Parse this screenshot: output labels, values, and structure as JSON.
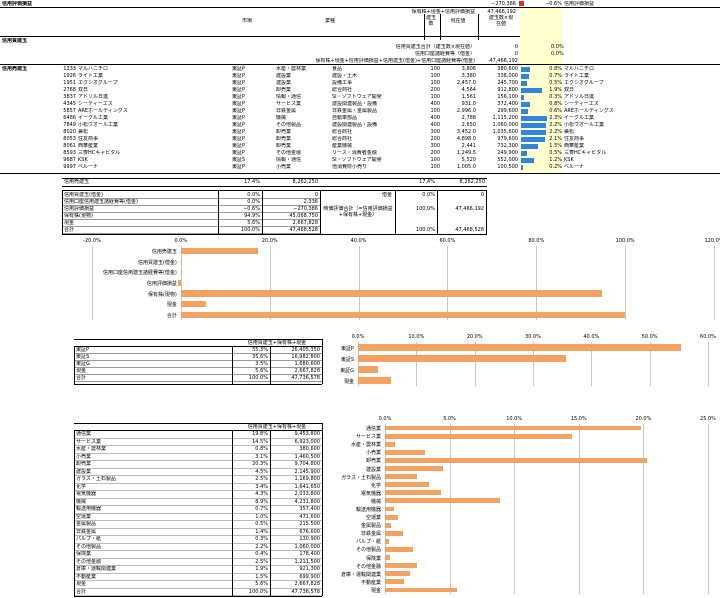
{
  "sheet": {
    "header_title": "信用評価損益",
    "top_row": {
      "label": "信用評価損益",
      "value": "−270,386",
      "pct": "−0.6%",
      "name": "信用評価損益"
    },
    "total_label": "保有株+現金+信用評価損益",
    "total_value": "47,466,192",
    "col_market": "市場",
    "col_industry": "業種",
    "col_shares": "建玉数",
    "col_price": "現在値",
    "col_shares2": "建玉数×現在値",
    "section_buy": "信用買建玉",
    "buy_total_label": "信用買建玉合計（建玉数×現在値）",
    "buy_total_value": "0",
    "buy_total_pct": "0.0%",
    "buy_fee_label": "信用口座諸経費等（借金）",
    "buy_fee_value": "0",
    "buy_fee_pct": "0.0%",
    "sum_label": "保有株+現金+信用評価損益+信用建玉(借金)+信用口座諸経費等(借金)",
    "sum_value": "47,466,192",
    "section_sell": "信用売建玉",
    "rows": [
      {
        "code": "1333",
        "name": "マルハニチロ",
        "market": "東証P",
        "industry": "水産・農林業",
        "sub": "食品",
        "shares": "100",
        "price": "3,806",
        "value": "380,600",
        "pct": "0.8%",
        "pctv": 0.8,
        "label": "マルハニチロ"
      },
      {
        "code": "1926",
        "name": "ライト工業",
        "market": "東証P",
        "industry": "建設業",
        "sub": "建設・土木",
        "shares": "100",
        "price": "3,380",
        "value": "338,000",
        "pct": "0.7%",
        "pctv": 0.7,
        "label": "ライト工業"
      },
      {
        "code": "1951",
        "name": "エクシオグループ",
        "market": "東証P",
        "industry": "建設業",
        "sub": "設備工事",
        "shares": "100",
        "price": "2,457.0",
        "value": "245,700",
        "pct": "0.5%",
        "pctv": 0.5,
        "label": "エクシオグループ"
      },
      {
        "code": "2768",
        "name": "双日",
        "market": "東証P",
        "industry": "卸売業",
        "sub": "総合商社",
        "shares": "200",
        "price": "4,564",
        "value": "912,800",
        "pct": "1.9%",
        "pctv": 1.9,
        "label": "双日"
      },
      {
        "code": "3837",
        "name": "アドソル日進",
        "market": "東証P",
        "industry": "情報・通信",
        "sub": "SI・ソフトウェア開発",
        "shares": "100",
        "price": "1,561",
        "value": "156,100",
        "pct": "0.3%",
        "pctv": 0.3,
        "label": "アドソル日進"
      },
      {
        "code": "4345",
        "name": "シーティーエス",
        "market": "東証P",
        "industry": "サービス業",
        "sub": "建設関連製品・設備",
        "shares": "400",
        "price": "931.0",
        "value": "372,400",
        "pct": "0.8%",
        "pctv": 0.8,
        "label": "シーティーエス"
      },
      {
        "code": "5857",
        "name": "AREホールディングス",
        "market": "東証P",
        "industry": "非鉄金属",
        "sub": "非鉄金属・金属製品",
        "shares": "100",
        "price": "2,996.0",
        "value": "299,600",
        "pct": "0.6%",
        "pctv": 0.6,
        "label": "AREホールディングス"
      },
      {
        "code": "6486",
        "name": "イーグル工業",
        "market": "東証P",
        "industry": "機械",
        "sub": "自動車部品",
        "shares": "400",
        "price": "2,788",
        "value": "1,115,200",
        "pct": "2.3%",
        "pctv": 2.3,
        "label": "イーグル工業"
      },
      {
        "code": "7849",
        "name": "小松ウオール工業",
        "market": "東証P",
        "industry": "その他製品",
        "sub": "建設関連製品・設備",
        "shares": "400",
        "price": "2,650",
        "value": "1,060,000",
        "pct": "2.2%",
        "pctv": 2.2,
        "label": "小松ウオール工業"
      },
      {
        "code": "8020",
        "name": "兼松",
        "market": "東証P",
        "industry": "卸売業",
        "sub": "総合商社",
        "shares": "300",
        "price": "3,452.0",
        "value": "1,035,600",
        "pct": "2.2%",
        "pctv": 2.2,
        "label": "兼松"
      },
      {
        "code": "8053",
        "name": "住友商事",
        "market": "東証P",
        "industry": "卸売業",
        "sub": "総合商社",
        "shares": "200",
        "price": "4,898.0",
        "value": "979,600",
        "pct": "2.1%",
        "pctv": 2.1,
        "label": "住友商事"
      },
      {
        "code": "8061",
        "name": "西華産業",
        "market": "東証P",
        "industry": "卸売業",
        "sub": "産業機械",
        "shares": "300",
        "price": "2,441",
        "value": "732,300",
        "pct": "1.5%",
        "pctv": 1.5,
        "label": "西華産業"
      },
      {
        "code": "8593",
        "name": "三菱HCキャピタル",
        "market": "東証P",
        "industry": "その他金融",
        "sub": "リース・消費者金融",
        "shares": "200",
        "price": "1,249.5",
        "value": "249,900",
        "pct": "0.5%",
        "pctv": 0.5,
        "label": "三菱HCキャピタル"
      },
      {
        "code": "9687",
        "name": "KSK",
        "market": "東証S",
        "industry": "情報・通信",
        "sub": "SI・ソフトウェア開発",
        "shares": "100",
        "price": "5,520",
        "value": "552,000",
        "pct": "1.2%",
        "pctv": 1.2,
        "label": "KSK"
      },
      {
        "code": "9997",
        "name": "ベルーナ",
        "market": "東証P",
        "industry": "小売業",
        "sub": "他消費財小売り",
        "shares": "100",
        "price": "1,005.0",
        "value": "100,500",
        "pct": "0.2%",
        "pctv": 0.2,
        "label": "ベルーナ"
      }
    ],
    "sell_total": {
      "label": "信用売建玉",
      "pct": "17.4%",
      "value": "8,262,250",
      "pct2": "17.4%",
      "value2": "8,262,250"
    }
  },
  "summary": {
    "rows": [
      {
        "label": "信用買建玉(借金)",
        "pct": "0.0%",
        "value": "0"
      },
      {
        "label": "信用口座信用建玉諸経費等(借金)",
        "pct": "0.0%",
        "value": "2,336"
      },
      {
        "label": "信用評価損益",
        "pct": "−0.6%",
        "value": "−270,386"
      },
      {
        "label": "保有株(現物)",
        "pct": "94.9%",
        "value": "45,068,750"
      },
      {
        "label": "現金",
        "pct": "5.6%",
        "value": "2,667,828"
      },
      {
        "label": "合計",
        "pct": "100.0%",
        "value": "47,468,528"
      }
    ],
    "right": {
      "debt_label": "借金",
      "debt_pct": "0.0%",
      "debt_value": "0",
      "total_label": "時価評価合計（=信用評価損益+保有株+現金）",
      "total_pct": "100.0%",
      "total_value": "47,466,192",
      "sum_pct": "100.0%",
      "sum_value": "47,468,528"
    }
  },
  "market": {
    "header": "信用買建玉+保有株+現金",
    "rows": [
      {
        "label": "東証P",
        "pct": "55.3%",
        "value": "26,405,350"
      },
      {
        "label": "東証S",
        "pct": "35.6%",
        "value": "16,982,800"
      },
      {
        "label": "東証G",
        "pct": "3.5%",
        "value": "1,680,600"
      },
      {
        "label": "現金",
        "pct": "5.6%",
        "value": "2,667,828"
      },
      {
        "label": "合計",
        "pct": "100.0%",
        "value": "47,736,578"
      }
    ]
  },
  "industry": {
    "header": "信用買建玉+保有株+現金",
    "rows": [
      {
        "label": "通信業",
        "pct": "19.8%",
        "value": "9,453,800"
      },
      {
        "label": "サービス業",
        "pct": "14.5%",
        "value": "6,923,000"
      },
      {
        "label": "水産・農林業",
        "pct": "0.8%",
        "value": "380,600"
      },
      {
        "label": "小売業",
        "pct": "3.1%",
        "value": "1,460,500"
      },
      {
        "label": "卸売業",
        "pct": "20.3%",
        "value": "9,704,800"
      },
      {
        "label": "建設業",
        "pct": "4.5%",
        "value": "2,145,900"
      },
      {
        "label": "ガラス・土石製品",
        "pct": "2.5%",
        "value": "1,169,800"
      },
      {
        "label": "化学",
        "pct": "3.4%",
        "value": "1,641,650"
      },
      {
        "label": "電気機器",
        "pct": "4.3%",
        "value": "2,033,800"
      },
      {
        "label": "機械",
        "pct": "8.9%",
        "value": "4,231,800"
      },
      {
        "label": "輸送用機器",
        "pct": "0.7%",
        "value": "357,400"
      },
      {
        "label": "空運業",
        "pct": "1.0%",
        "value": "471,600"
      },
      {
        "label": "金属製品",
        "pct": "0.5%",
        "value": "215,500"
      },
      {
        "label": "非鉄金属",
        "pct": "1.4%",
        "value": "676,600"
      },
      {
        "label": "パルプ・紙",
        "pct": "0.3%",
        "value": "130,900"
      },
      {
        "label": "その他製品",
        "pct": "2.2%",
        "value": "1,060,000"
      },
      {
        "label": "保険業",
        "pct": "0.4%",
        "value": "178,400"
      },
      {
        "label": "その他金融",
        "pct": "2.5%",
        "value": "1,211,500"
      },
      {
        "label": "倉庫・運輸関連業",
        "pct": "1.9%",
        "value": "921,300"
      },
      {
        "label": "不動産業",
        "pct": "1.5%",
        "value": "699,900"
      },
      {
        "label": "現金",
        "pct": "5.6%",
        "value": "2,667,828"
      },
      {
        "label": "合計",
        "pct": "100.0%",
        "value": "47,736,578"
      }
    ]
  },
  "chart_data": [
    {
      "type": "bar",
      "orientation": "horizontal",
      "categories": [
        "信用売建玉",
        "信用買建玉(借金)",
        "信用口座信用建玉諸経費等(借金)",
        "信用評価損益",
        "保有株(現物)",
        "現金",
        "合計"
      ],
      "values": [
        17.4,
        0.0,
        0.0,
        -0.6,
        94.9,
        5.6,
        100.0
      ],
      "xlim": [
        -20,
        120
      ],
      "ticks": [
        "-20.0%",
        "0.0%",
        "20.0%",
        "40.0%",
        "60.0%",
        "80.0%",
        "100.0%",
        "120.0%"
      ],
      "tick_values": [
        -20,
        0,
        20,
        40,
        60,
        80,
        100,
        120
      ],
      "color": "#f4a261"
    },
    {
      "type": "bar",
      "orientation": "horizontal",
      "categories": [
        "東証P",
        "東証S",
        "東証G",
        "現金"
      ],
      "values": [
        55.3,
        35.6,
        3.5,
        5.6
      ],
      "xlim": [
        0,
        60
      ],
      "ticks": [
        "0.0%",
        "10.0%",
        "20.0%",
        "30.0%",
        "40.0%",
        "50.0%",
        "60.0%"
      ],
      "tick_values": [
        0,
        10,
        20,
        30,
        40,
        50,
        60
      ],
      "color": "#f4a261"
    },
    {
      "type": "bar",
      "orientation": "horizontal",
      "categories": [
        "通信業",
        "サービス業",
        "水産・農林業",
        "小売業",
        "卸売業",
        "建設業",
        "ガラス・土石製品",
        "化学",
        "電気機器",
        "機械",
        "輸送用機器",
        "空運業",
        "金属製品",
        "非鉄金属",
        "パルプ・紙",
        "その他製品",
        "保険業",
        "その他金融",
        "倉庫・運輸関連業",
        "不動産業",
        "現金"
      ],
      "values": [
        19.8,
        14.5,
        0.8,
        3.1,
        20.3,
        4.5,
        2.5,
        3.4,
        4.3,
        8.9,
        0.7,
        1.0,
        0.5,
        1.4,
        0.3,
        2.2,
        0.4,
        2.5,
        1.9,
        1.5,
        5.6
      ],
      "xlim": [
        0,
        25
      ],
      "ticks": [
        "0.0%",
        "5.0%",
        "10.0%",
        "15.0%",
        "20.0%",
        "25.0%"
      ],
      "tick_values": [
        0,
        5,
        10,
        15,
        20,
        25
      ],
      "color": "#f4a261"
    }
  ]
}
